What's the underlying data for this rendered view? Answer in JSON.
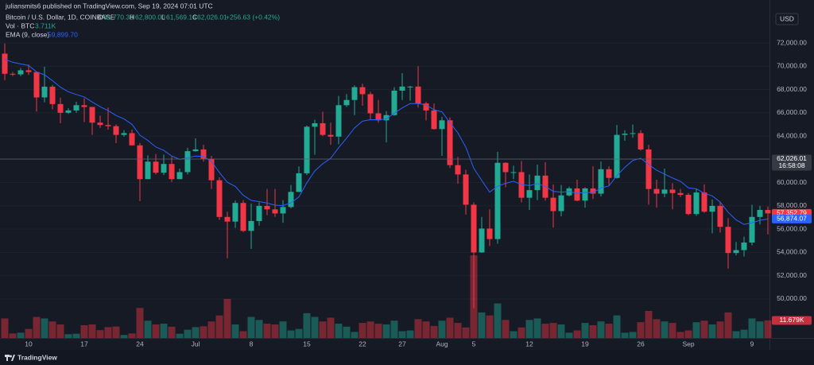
{
  "header": {
    "published": "juliansmits6 published on TradingView.com, Sep 19, 2024 07:01 UTC",
    "symbol": "Bitcoin / U.S. Dollar, 1D, COINBASE",
    "ohlc": [
      {
        "key": "O",
        "value": "61,770.38"
      },
      {
        "key": "H",
        "value": "62,800.00"
      },
      {
        "key": "L",
        "value": "61,569.16"
      },
      {
        "key": "C",
        "value": "62,026.01"
      }
    ],
    "change": "+256.63 (+0.42%)",
    "volume_name": "Vol · BTC",
    "volume_value": "3.711K",
    "ema_name": "EMA (9, close)",
    "ema_value": "59,899.70",
    "currency": "USD"
  },
  "footer": {
    "brand": "TradingView"
  },
  "chart_data": {
    "type": "candlestick",
    "up_color": "#22ab94",
    "down_color": "#f23645",
    "grid": true,
    "categories": [
      null,
      null,
      null,
      "10",
      null,
      null,
      null,
      null,
      null,
      null,
      "17",
      null,
      null,
      null,
      null,
      null,
      null,
      "24",
      null,
      null,
      null,
      null,
      null,
      null,
      "Jul",
      null,
      null,
      null,
      null,
      null,
      null,
      "8",
      null,
      null,
      null,
      null,
      null,
      null,
      "15",
      null,
      null,
      null,
      null,
      null,
      null,
      "22",
      null,
      null,
      null,
      null,
      "27",
      null,
      null,
      null,
      null,
      "Aug",
      null,
      null,
      null,
      "5",
      null,
      null,
      null,
      null,
      null,
      null,
      "12",
      null,
      null,
      null,
      null,
      null,
      null,
      "19",
      null,
      null,
      null,
      null,
      null,
      null,
      "26",
      null,
      null,
      null,
      null,
      null,
      "Sep",
      null,
      null,
      null,
      null,
      null,
      null,
      null,
      "9",
      null,
      null
    ],
    "open": [
      71080,
      69350,
      69300,
      69650,
      69500,
      67320,
      68240,
      66750,
      66000,
      66200,
      66650,
      66500,
      65150,
      64950,
      64850,
      64100,
      64250,
      63200,
      60300,
      61800,
      60850,
      61600,
      60300,
      60900,
      62700,
      62850,
      62050,
      60200,
      57050,
      56650,
      58250,
      55850,
      56700,
      58000,
      57700,
      57350,
      57900,
      59200,
      60800,
      64800,
      65100,
      64100,
      63950,
      66650,
      67100,
      68200,
      67600,
      65950,
      65350,
      65800,
      67900,
      68250,
      68250,
      66800,
      66200,
      64600,
      65350,
      61500,
      60700,
      58100,
      54000,
      56050,
      55150,
      61700,
      60900,
      60900,
      58700,
      59350,
      60600,
      58700,
      57550,
      58900,
      59500,
      58450,
      59500,
      59050,
      61150,
      60400,
      64100,
      64200,
      64250,
      62850,
      59450,
      59050,
      59400,
      59100,
      58950,
      57300,
      59150,
      57500,
      58000,
      56200,
      53950,
      54200,
      54850,
      57050,
      57650
    ],
    "high": [
      71950,
      69500,
      69850,
      70150,
      69550,
      69950,
      68400,
      67300,
      66400,
      66950,
      67250,
      66500,
      65750,
      66450,
      65000,
      64500,
      64550,
      63400,
      62350,
      62450,
      62400,
      62200,
      61200,
      63000,
      63800,
      63250,
      62300,
      60450,
      57500,
      58450,
      58500,
      58200,
      58300,
      59450,
      59450,
      58500,
      59800,
      61400,
      64900,
      65400,
      66100,
      65150,
      67450,
      67600,
      68350,
      68500,
      67800,
      67100,
      66150,
      68200,
      69400,
      68300,
      70000,
      66950,
      66800,
      65650,
      65600,
      62200,
      61100,
      58300,
      57050,
      57700,
      62650,
      61750,
      61450,
      61850,
      60700,
      61550,
      61750,
      59850,
      59800,
      59650,
      60250,
      59600,
      61400,
      61800,
      61400,
      64950,
      64500,
      65000,
      64500,
      63250,
      60250,
      61200,
      59950,
      59450,
      59100,
      59450,
      59850,
      58550,
      58350,
      56950,
      54900,
      55350,
      58100,
      58000,
      57950
    ],
    "low": [
      68800,
      69150,
      69150,
      69250,
      66100,
      66900,
      66300,
      65100,
      65900,
      66000,
      65200,
      64100,
      64700,
      64550,
      63400,
      63950,
      63200,
      58400,
      60300,
      60700,
      60650,
      60050,
      60300,
      60700,
      62650,
      61800,
      59450,
      56800,
      53500,
      56100,
      55750,
      54300,
      56300,
      57200,
      57050,
      56550,
      57800,
      59200,
      60650,
      62400,
      64000,
      63250,
      63300,
      66500,
      65800,
      66600,
      65400,
      65150,
      63450,
      65750,
      67100,
      67050,
      66450,
      65350,
      64550,
      62300,
      61250,
      59900,
      57250,
      49200,
      53950,
      54550,
      54750,
      59600,
      60300,
      58300,
      57650,
      58500,
      58450,
      56150,
      57100,
      58800,
      58400,
      57850,
      58600,
      58800,
      59800,
      60350,
      63600,
      63850,
      62750,
      58100,
      57850,
      58750,
      57700,
      58750,
      57200,
      57150,
      57400,
      55650,
      55700,
      52600,
      53750,
      53650,
      54600,
      56400,
      55550
    ],
    "close": [
      69350,
      69300,
      69650,
      69500,
      67320,
      68240,
      66750,
      66000,
      66200,
      66650,
      66500,
      65150,
      64950,
      64850,
      64100,
      64250,
      63200,
      60300,
      61800,
      60850,
      61600,
      60300,
      60900,
      62700,
      62850,
      62050,
      60200,
      57050,
      56650,
      58250,
      55850,
      56700,
      58000,
      57700,
      57350,
      57900,
      59200,
      60800,
      64800,
      65100,
      64100,
      63950,
      66650,
      67100,
      68200,
      67600,
      65950,
      65350,
      65800,
      67900,
      68250,
      68250,
      66800,
      66200,
      64600,
      65350,
      61500,
      60700,
      58100,
      54000,
      56050,
      55150,
      61700,
      60900,
      60900,
      58700,
      59350,
      60600,
      58700,
      57550,
      58900,
      59500,
      58450,
      59500,
      59050,
      61150,
      60400,
      64100,
      64200,
      64250,
      62850,
      59450,
      59050,
      59400,
      59100,
      58950,
      57300,
      59150,
      57500,
      58000,
      56200,
      53950,
      54200,
      54850,
      57050,
      57650,
      57352.79
    ],
    "volume": {
      "ylim": [
        0,
        225000
      ],
      "values": [
        13000,
        3000,
        3500,
        6000,
        14000,
        13000,
        11000,
        9000,
        2500,
        2800,
        8500,
        9000,
        5200,
        7200,
        7600,
        2000,
        3000,
        20000,
        11500,
        9000,
        9500,
        7500,
        2800,
        5500,
        7200,
        7800,
        11000,
        15000,
        26000,
        9000,
        4500,
        14000,
        12000,
        9500,
        9000,
        11000,
        5000,
        6000,
        16500,
        14000,
        11000,
        13500,
        9500,
        7500,
        4000,
        10000,
        11000,
        9500,
        9000,
        11500,
        4500,
        5000,
        12500,
        11000,
        8000,
        11500,
        13500,
        10000,
        7000,
        55000,
        17000,
        15000,
        23000,
        12000,
        4500,
        7000,
        12000,
        13000,
        9500,
        10000,
        9000,
        3500,
        5000,
        10000,
        8500,
        11000,
        9500,
        15000,
        3500,
        4000,
        10500,
        18000,
        12500,
        11000,
        10000,
        4000,
        5000,
        10500,
        11500,
        9000,
        11000,
        17000,
        4500,
        5500,
        13000,
        11000,
        11679
      ],
      "value_labels": [
        null,
        null,
        null,
        null,
        null,
        null,
        null,
        null,
        null,
        null,
        null,
        null,
        null,
        null,
        null,
        null,
        null,
        null,
        null,
        null,
        null,
        null,
        null,
        null,
        null,
        null,
        null,
        null,
        null,
        null,
        null,
        null,
        null,
        null,
        null,
        null,
        null,
        null,
        null,
        null,
        null,
        null,
        null,
        null,
        null,
        null,
        null,
        null,
        null,
        null,
        null,
        null,
        null,
        null,
        null,
        null,
        null,
        null,
        null,
        null,
        null,
        null,
        null,
        null,
        null,
        null,
        null,
        null,
        null,
        null,
        null,
        null,
        null,
        null,
        null,
        null,
        null,
        null,
        null,
        null,
        null,
        null,
        null,
        null,
        null,
        null,
        null,
        null,
        null,
        null,
        null,
        null,
        null,
        null,
        null,
        null,
        "11.679K"
      ]
    },
    "ema": {
      "name": "EMA (9, close)",
      "color": "#2962ff",
      "values": [
        70600,
        70340,
        70200,
        70060,
        69510,
        69260,
        68760,
        68200,
        67800,
        67570,
        67360,
        66920,
        66520,
        66190,
        65770,
        65470,
        65010,
        64070,
        63620,
        63060,
        62770,
        62280,
        62000,
        62140,
        62280,
        62240,
        61830,
        60870,
        60030,
        59670,
        58910,
        58470,
        58370,
        58240,
        58060,
        58030,
        58260,
        58770,
        59980,
        61000,
        61620,
        62090,
        63000,
        63820,
        64700,
        65280,
        65410,
        65400,
        65480,
        65960,
        66420,
        66790,
        66790,
        66670,
        66260,
        66080,
        65160,
        64270,
        63040,
        61230,
        60190,
        59180,
        59690,
        59930,
        60120,
        59840,
        59740,
        59910,
        59670,
        59250,
        59180,
        59240,
        59080,
        59170,
        59140,
        59540,
        59710,
        60590,
        61310,
        61900,
        62090,
        61560,
        61060,
        60730,
        60400,
        60110,
        59550,
        59470,
        59080,
        58860,
        58330,
        57450,
        56800,
        56410,
        56540,
        56760,
        56874.07
      ]
    },
    "ylim": [
      46650,
      75690
    ],
    "yticks": [
      {
        "value": 50000,
        "label": "50,000.00"
      },
      {
        "value": 52000,
        "label": "52,000.00"
      },
      {
        "value": 54000,
        "label": "54,000.00"
      },
      {
        "value": 56000,
        "label": "56,000.00"
      },
      {
        "value": 58000,
        "label": "58,000.00"
      },
      {
        "value": 60000,
        "label": "60,000.00"
      },
      {
        "value": 62000,
        "label": "62,000.00"
      },
      {
        "value": 64000,
        "label": "64,000.00"
      },
      {
        "value": 66000,
        "label": "66,000.00"
      },
      {
        "value": 68000,
        "label": "68,000.00"
      },
      {
        "value": 70000,
        "label": "70,000.00"
      },
      {
        "value": 72000,
        "label": "72,000.00"
      }
    ],
    "price_tags": [
      {
        "value": 62026.01,
        "label": "62,026.01",
        "time": "16:58:08",
        "color": "#363a45",
        "line": true
      },
      {
        "value": 57352.79,
        "label": "57,352.79",
        "color": "#f23645"
      },
      {
        "value": 56874.07,
        "label": "56,874.07",
        "color": "#2962ff"
      }
    ]
  }
}
